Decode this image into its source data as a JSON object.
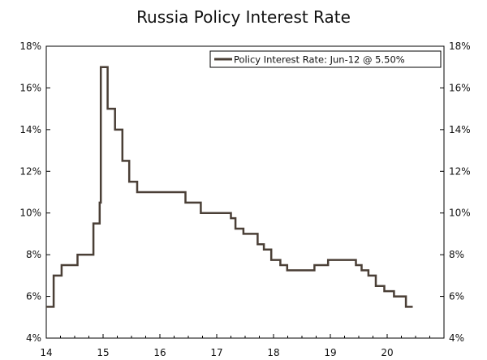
{
  "chart_data": {
    "type": "line",
    "title": "Russia Policy Interest Rate",
    "xlabel": "",
    "ylabel": "",
    "x_ticks": [
      "14",
      "15",
      "16",
      "17",
      "18",
      "19",
      "20"
    ],
    "y_ticks": [
      "4%",
      "6%",
      "8%",
      "10%",
      "12%",
      "14%",
      "16%",
      "18%"
    ],
    "xlim": [
      2014.0,
      2021.0
    ],
    "ylim": [
      4,
      18
    ],
    "grid": false,
    "legend_position": "top-right",
    "line_color": "#4a3f36",
    "series": [
      {
        "name": "Policy Interest Rate: Jun-12 @ 5.50%",
        "step": true,
        "points": [
          [
            2014.0,
            5.5
          ],
          [
            2014.13,
            7.0
          ],
          [
            2014.27,
            7.5
          ],
          [
            2014.55,
            8.0
          ],
          [
            2014.83,
            9.5
          ],
          [
            2014.94,
            10.5
          ],
          [
            2014.96,
            17.0
          ],
          [
            2015.08,
            15.0
          ],
          [
            2015.21,
            14.0
          ],
          [
            2015.34,
            12.5
          ],
          [
            2015.46,
            11.5
          ],
          [
            2015.6,
            11.0
          ],
          [
            2016.45,
            10.5
          ],
          [
            2016.72,
            10.0
          ],
          [
            2017.25,
            9.75
          ],
          [
            2017.33,
            9.25
          ],
          [
            2017.47,
            9.0
          ],
          [
            2017.72,
            8.5
          ],
          [
            2017.83,
            8.25
          ],
          [
            2017.96,
            7.75
          ],
          [
            2018.12,
            7.5
          ],
          [
            2018.24,
            7.25
          ],
          [
            2018.72,
            7.5
          ],
          [
            2018.96,
            7.75
          ],
          [
            2019.45,
            7.5
          ],
          [
            2019.55,
            7.25
          ],
          [
            2019.67,
            7.0
          ],
          [
            2019.8,
            6.5
          ],
          [
            2019.95,
            6.25
          ],
          [
            2020.12,
            6.0
          ],
          [
            2020.33,
            5.5
          ],
          [
            2020.45,
            5.5
          ]
        ]
      }
    ]
  }
}
